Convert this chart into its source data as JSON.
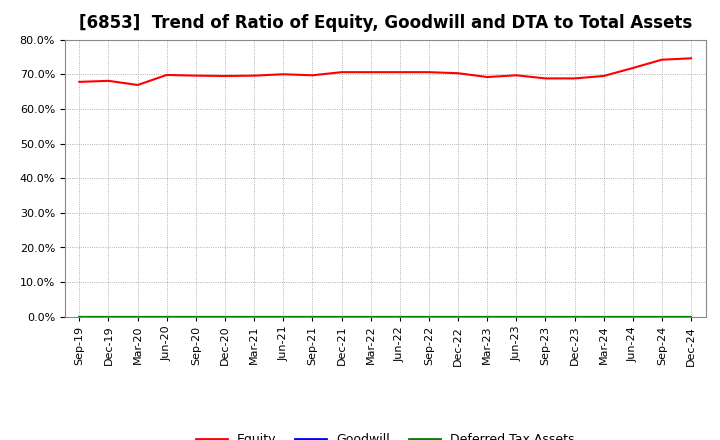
{
  "title": "[6853]  Trend of Ratio of Equity, Goodwill and DTA to Total Assets",
  "x_labels": [
    "Sep-19",
    "Dec-19",
    "Mar-20",
    "Jun-20",
    "Sep-20",
    "Dec-20",
    "Mar-21",
    "Jun-21",
    "Sep-21",
    "Dec-21",
    "Mar-22",
    "Jun-22",
    "Sep-22",
    "Dec-22",
    "Mar-23",
    "Jun-23",
    "Sep-23",
    "Dec-23",
    "Mar-24",
    "Jun-24",
    "Sep-24",
    "Dec-24"
  ],
  "equity": [
    0.678,
    0.681,
    0.669,
    0.698,
    0.696,
    0.695,
    0.696,
    0.7,
    0.697,
    0.706,
    0.706,
    0.706,
    0.706,
    0.703,
    0.692,
    0.697,
    0.688,
    0.688,
    0.695,
    0.718,
    0.742,
    0.746
  ],
  "goodwill": [
    0.0,
    0.0,
    0.0,
    0.0,
    0.0,
    0.0,
    0.0,
    0.0,
    0.0,
    0.0,
    0.0,
    0.0,
    0.0,
    0.0,
    0.0,
    0.0,
    0.0,
    0.0,
    0.0,
    0.0,
    0.0,
    0.0
  ],
  "dta": [
    0.0,
    0.0,
    0.0,
    0.0,
    0.0,
    0.0,
    0.0,
    0.0,
    0.0,
    0.0,
    0.0,
    0.0,
    0.0,
    0.0,
    0.0,
    0.0,
    0.0,
    0.0,
    0.0,
    0.0,
    0.0,
    0.0
  ],
  "equity_color": "#ff0000",
  "goodwill_color": "#0000ff",
  "dta_color": "#008000",
  "ylim": [
    0.0,
    0.8
  ],
  "yticks": [
    0.0,
    0.1,
    0.2,
    0.3,
    0.4,
    0.5,
    0.6,
    0.7,
    0.8
  ],
  "background_color": "#ffffff",
  "plot_bg_color": "#ffffff",
  "grid_color": "#999999",
  "title_fontsize": 12,
  "tick_fontsize": 8,
  "legend_labels": [
    "Equity",
    "Goodwill",
    "Deferred Tax Assets"
  ]
}
